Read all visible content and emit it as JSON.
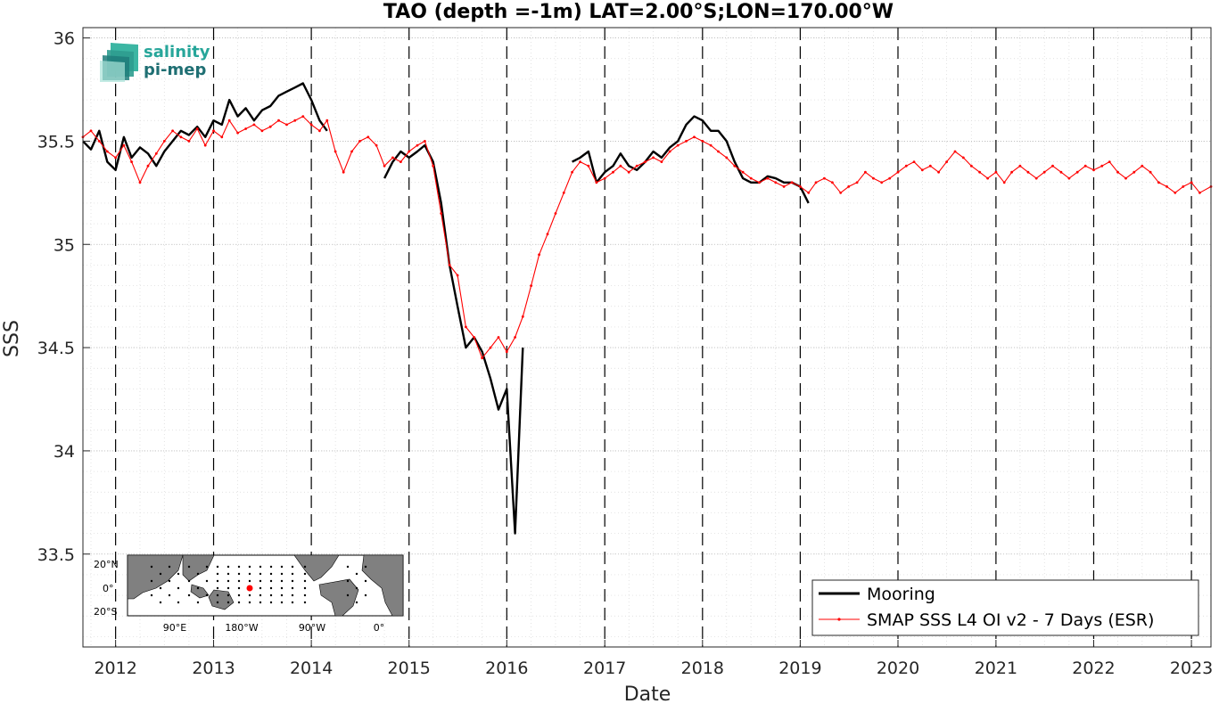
{
  "logo": {
    "line1": "salinity",
    "line2": "pi-mep"
  },
  "chart_data": {
    "type": "line",
    "title": "TAO (depth =-1m) LAT=2.00°S;LON=170.00°W",
    "xlabel": "Date",
    "ylabel": "SSS",
    "xlim": [
      "2011-09-01",
      "2023-03-15"
    ],
    "ylim": [
      33.05,
      36.05
    ],
    "x_ticks": [
      "2012",
      "2013",
      "2014",
      "2015",
      "2016",
      "2017",
      "2018",
      "2019",
      "2020",
      "2021",
      "2022",
      "2023"
    ],
    "y_ticks": [
      "33.5",
      "34",
      "34.5",
      "35",
      "35.5",
      "36"
    ],
    "grid": "dotted major and minor",
    "year_boundaries": "dashed vertical lines at Jan 1 of each year",
    "legend_position": "bottom-right",
    "series": [
      {
        "name": "Mooring",
        "color": "#000000",
        "points": [
          [
            "2011-09-01",
            35.5
          ],
          [
            "2011-10-01",
            35.46
          ],
          [
            "2011-11-01",
            35.55
          ],
          [
            "2011-12-01",
            35.4
          ],
          [
            "2012-01-01",
            35.36
          ],
          [
            "2012-02-01",
            35.52
          ],
          [
            "2012-03-01",
            35.42
          ],
          [
            "2012-04-01",
            35.47
          ],
          [
            "2012-05-01",
            35.44
          ],
          [
            "2012-06-01",
            35.38
          ],
          [
            "2012-07-01",
            35.45
          ],
          [
            "2012-08-01",
            35.5
          ],
          [
            "2012-09-01",
            35.55
          ],
          [
            "2012-10-01",
            35.53
          ],
          [
            "2012-11-01",
            35.57
          ],
          [
            "2012-12-01",
            35.52
          ],
          [
            "2013-01-01",
            35.6
          ],
          [
            "2013-02-01",
            35.58
          ],
          [
            "2013-03-01",
            35.7
          ],
          [
            "2013-04-01",
            35.62
          ],
          [
            "2013-05-01",
            35.66
          ],
          [
            "2013-06-01",
            35.6
          ],
          [
            "2013-07-01",
            35.65
          ],
          [
            "2013-08-01",
            35.67
          ],
          [
            "2013-09-01",
            35.72
          ],
          [
            "2013-10-01",
            35.74
          ],
          [
            "2013-11-01",
            35.76
          ],
          [
            "2013-12-01",
            35.78
          ],
          [
            "2014-01-01",
            35.7
          ],
          [
            "2014-02-01",
            35.6
          ],
          [
            "2014-03-01",
            35.55
          ],
          [
            "2014-10-01",
            35.32
          ],
          [
            "2014-11-01",
            35.4
          ],
          [
            "2014-12-01",
            35.45
          ],
          [
            "2015-01-01",
            35.42
          ],
          [
            "2015-02-01",
            35.45
          ],
          [
            "2015-03-01",
            35.48
          ],
          [
            "2015-04-01",
            35.4
          ],
          [
            "2015-05-01",
            35.2
          ],
          [
            "2015-06-01",
            34.9
          ],
          [
            "2015-07-01",
            34.7
          ],
          [
            "2015-08-01",
            34.5
          ],
          [
            "2015-09-01",
            34.55
          ],
          [
            "2015-10-01",
            34.48
          ],
          [
            "2015-11-01",
            34.35
          ],
          [
            "2015-12-01",
            34.2
          ],
          [
            "2016-01-01",
            34.3
          ],
          [
            "2016-02-01",
            33.6
          ],
          [
            "2016-03-01",
            34.5
          ],
          [
            "2016-09-01",
            35.4
          ],
          [
            "2016-10-01",
            35.42
          ],
          [
            "2016-11-01",
            35.45
          ],
          [
            "2016-12-01",
            35.3
          ],
          [
            "2017-01-01",
            35.35
          ],
          [
            "2017-02-01",
            35.38
          ],
          [
            "2017-03-01",
            35.44
          ],
          [
            "2017-04-01",
            35.38
          ],
          [
            "2017-05-01",
            35.36
          ],
          [
            "2017-06-01",
            35.4
          ],
          [
            "2017-07-01",
            35.45
          ],
          [
            "2017-08-01",
            35.42
          ],
          [
            "2017-09-01",
            35.47
          ],
          [
            "2017-10-01",
            35.5
          ],
          [
            "2017-11-01",
            35.58
          ],
          [
            "2017-12-01",
            35.62
          ],
          [
            "2018-01-01",
            35.6
          ],
          [
            "2018-02-01",
            35.55
          ],
          [
            "2018-03-01",
            35.55
          ],
          [
            "2018-04-01",
            35.5
          ],
          [
            "2018-05-01",
            35.4
          ],
          [
            "2018-06-01",
            35.32
          ],
          [
            "2018-07-01",
            35.3
          ],
          [
            "2018-08-01",
            35.3
          ],
          [
            "2018-09-01",
            35.33
          ],
          [
            "2018-10-01",
            35.32
          ],
          [
            "2018-11-01",
            35.3
          ],
          [
            "2018-12-01",
            35.3
          ],
          [
            "2019-01-01",
            35.28
          ],
          [
            "2019-02-01",
            35.2
          ]
        ]
      },
      {
        "name": "SMAP SSS L4 OI v2 - 7 Days (ESR)",
        "color": "#ff0000",
        "points": [
          [
            "2011-09-01",
            35.52
          ],
          [
            "2011-10-01",
            35.55
          ],
          [
            "2011-11-01",
            35.5
          ],
          [
            "2011-12-01",
            35.45
          ],
          [
            "2012-01-01",
            35.42
          ],
          [
            "2012-02-01",
            35.48
          ],
          [
            "2012-03-01",
            35.4
          ],
          [
            "2012-04-01",
            35.3
          ],
          [
            "2012-05-01",
            35.38
          ],
          [
            "2012-06-01",
            35.44
          ],
          [
            "2012-07-01",
            35.5
          ],
          [
            "2012-08-01",
            35.55
          ],
          [
            "2012-09-01",
            35.52
          ],
          [
            "2012-10-01",
            35.5
          ],
          [
            "2012-11-01",
            35.56
          ],
          [
            "2012-12-01",
            35.48
          ],
          [
            "2013-01-01",
            35.55
          ],
          [
            "2013-02-01",
            35.52
          ],
          [
            "2013-03-01",
            35.6
          ],
          [
            "2013-04-01",
            35.54
          ],
          [
            "2013-05-01",
            35.56
          ],
          [
            "2013-06-01",
            35.58
          ],
          [
            "2013-07-01",
            35.55
          ],
          [
            "2013-08-01",
            35.57
          ],
          [
            "2013-09-01",
            35.6
          ],
          [
            "2013-10-01",
            35.58
          ],
          [
            "2013-11-01",
            35.6
          ],
          [
            "2013-12-01",
            35.62
          ],
          [
            "2014-01-01",
            35.58
          ],
          [
            "2014-02-01",
            35.55
          ],
          [
            "2014-03-01",
            35.6
          ],
          [
            "2014-04-01",
            35.45
          ],
          [
            "2014-05-01",
            35.35
          ],
          [
            "2014-06-01",
            35.45
          ],
          [
            "2014-07-01",
            35.5
          ],
          [
            "2014-08-01",
            35.52
          ],
          [
            "2014-09-01",
            35.48
          ],
          [
            "2014-10-01",
            35.38
          ],
          [
            "2014-11-01",
            35.42
          ],
          [
            "2014-12-01",
            35.4
          ],
          [
            "2015-01-01",
            35.45
          ],
          [
            "2015-02-01",
            35.48
          ],
          [
            "2015-03-01",
            35.5
          ],
          [
            "2015-04-01",
            35.38
          ],
          [
            "2015-05-01",
            35.15
          ],
          [
            "2015-06-01",
            34.9
          ],
          [
            "2015-07-01",
            34.85
          ],
          [
            "2015-08-01",
            34.6
          ],
          [
            "2015-09-01",
            34.55
          ],
          [
            "2015-10-01",
            34.45
          ],
          [
            "2015-11-01",
            34.5
          ],
          [
            "2015-12-01",
            34.55
          ],
          [
            "2016-01-01",
            34.48
          ],
          [
            "2016-02-01",
            34.55
          ],
          [
            "2016-03-01",
            34.65
          ],
          [
            "2016-04-01",
            34.8
          ],
          [
            "2016-05-01",
            34.95
          ],
          [
            "2016-06-01",
            35.05
          ],
          [
            "2016-07-01",
            35.15
          ],
          [
            "2016-08-01",
            35.25
          ],
          [
            "2016-09-01",
            35.35
          ],
          [
            "2016-10-01",
            35.4
          ],
          [
            "2016-11-01",
            35.38
          ],
          [
            "2016-12-01",
            35.3
          ],
          [
            "2017-01-01",
            35.32
          ],
          [
            "2017-02-01",
            35.35
          ],
          [
            "2017-03-01",
            35.38
          ],
          [
            "2017-04-01",
            35.35
          ],
          [
            "2017-05-01",
            35.38
          ],
          [
            "2017-06-01",
            35.4
          ],
          [
            "2017-07-01",
            35.42
          ],
          [
            "2017-08-01",
            35.4
          ],
          [
            "2017-09-01",
            35.45
          ],
          [
            "2017-10-01",
            35.48
          ],
          [
            "2017-11-01",
            35.5
          ],
          [
            "2017-12-01",
            35.52
          ],
          [
            "2018-01-01",
            35.5
          ],
          [
            "2018-02-01",
            35.48
          ],
          [
            "2018-03-01",
            35.45
          ],
          [
            "2018-04-01",
            35.42
          ],
          [
            "2018-05-01",
            35.38
          ],
          [
            "2018-06-01",
            35.35
          ],
          [
            "2018-07-01",
            35.32
          ],
          [
            "2018-08-01",
            35.3
          ],
          [
            "2018-09-01",
            35.32
          ],
          [
            "2018-10-01",
            35.3
          ],
          [
            "2018-11-01",
            35.28
          ],
          [
            "2018-12-01",
            35.3
          ],
          [
            "2019-01-01",
            35.28
          ],
          [
            "2019-02-01",
            35.25
          ],
          [
            "2019-03-01",
            35.3
          ],
          [
            "2019-04-01",
            35.32
          ],
          [
            "2019-05-01",
            35.3
          ],
          [
            "2019-06-01",
            35.25
          ],
          [
            "2019-07-01",
            35.28
          ],
          [
            "2019-08-01",
            35.3
          ],
          [
            "2019-09-01",
            35.35
          ],
          [
            "2019-10-01",
            35.32
          ],
          [
            "2019-11-01",
            35.3
          ],
          [
            "2019-12-01",
            35.32
          ],
          [
            "2020-01-01",
            35.35
          ],
          [
            "2020-02-01",
            35.38
          ],
          [
            "2020-03-01",
            35.4
          ],
          [
            "2020-04-01",
            35.36
          ],
          [
            "2020-05-01",
            35.38
          ],
          [
            "2020-06-01",
            35.35
          ],
          [
            "2020-07-01",
            35.4
          ],
          [
            "2020-08-01",
            35.45
          ],
          [
            "2020-09-01",
            35.42
          ],
          [
            "2020-10-01",
            35.38
          ],
          [
            "2020-11-01",
            35.35
          ],
          [
            "2020-12-01",
            35.32
          ],
          [
            "2021-01-01",
            35.35
          ],
          [
            "2021-02-01",
            35.3
          ],
          [
            "2021-03-01",
            35.35
          ],
          [
            "2021-04-01",
            35.38
          ],
          [
            "2021-05-01",
            35.35
          ],
          [
            "2021-06-01",
            35.32
          ],
          [
            "2021-07-01",
            35.35
          ],
          [
            "2021-08-01",
            35.38
          ],
          [
            "2021-09-01",
            35.35
          ],
          [
            "2021-10-01",
            35.32
          ],
          [
            "2021-11-01",
            35.35
          ],
          [
            "2021-12-01",
            35.38
          ],
          [
            "2022-01-01",
            35.36
          ],
          [
            "2022-02-01",
            35.38
          ],
          [
            "2022-03-01",
            35.4
          ],
          [
            "2022-04-01",
            35.35
          ],
          [
            "2022-05-01",
            35.32
          ],
          [
            "2022-06-01",
            35.35
          ],
          [
            "2022-07-01",
            35.38
          ],
          [
            "2022-08-01",
            35.35
          ],
          [
            "2022-09-01",
            35.3
          ],
          [
            "2022-10-01",
            35.28
          ],
          [
            "2022-11-01",
            35.25
          ],
          [
            "2022-12-01",
            35.28
          ],
          [
            "2023-01-01",
            35.3
          ],
          [
            "2023-02-01",
            35.25
          ],
          [
            "2023-03-15",
            35.28
          ]
        ]
      }
    ],
    "inset_map": {
      "lat_labels": [
        "20°N",
        "0°",
        "20°S"
      ],
      "lon_labels": [
        "90°E",
        "180°W",
        "90°W",
        "0°"
      ]
    }
  }
}
